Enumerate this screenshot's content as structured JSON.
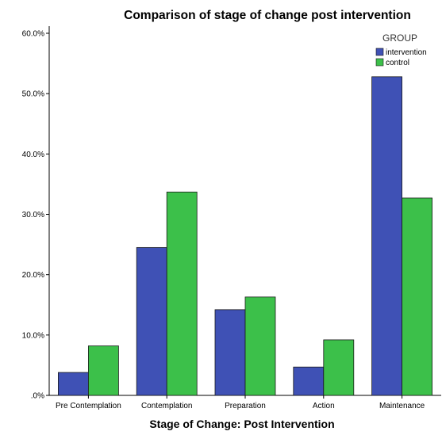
{
  "chart_data": {
    "type": "bar",
    "title": "Comparison of stage of change post intervention",
    "xlabel": "Stage of Change: Post Intervention",
    "ylabel": "",
    "categories": [
      "Pre Contemplation",
      "Contemplation",
      "Preparation",
      "Action",
      "Maintenance"
    ],
    "series": [
      {
        "name": "intervention",
        "color": "#3f51b5",
        "values": [
          3.8,
          24.5,
          14.2,
          4.7,
          52.8
        ]
      },
      {
        "name": "control",
        "color": "#3cc04a",
        "values": [
          8.2,
          33.7,
          16.3,
          9.2,
          32.7
        ]
      }
    ],
    "ylim": [
      0,
      60
    ],
    "yticks": [
      ".0%",
      "10.0%",
      "20.0%",
      "30.0%",
      "40.0%",
      "50.0%",
      "60.0%"
    ],
    "legend": {
      "title": "GROUP",
      "placement": "top-right"
    },
    "grid": false
  }
}
